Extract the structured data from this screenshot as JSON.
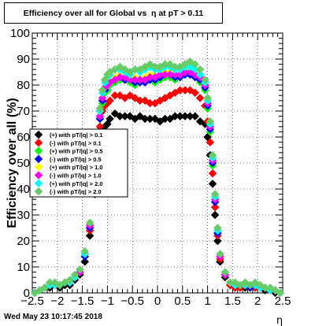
{
  "title": "Efficiency over all for Global vs  η at pT > 0.11",
  "footer_date": "Wed May 23 10:17:45 2018",
  "chart_data": {
    "type": "scatter",
    "xlabel": "η",
    "ylabel": "Efficiency over all (%)",
    "xlim": [
      -2.5,
      2.5
    ],
    "ylim": [
      0,
      100
    ],
    "x_ticks": [
      -2.5,
      -2,
      -1.5,
      -1,
      -0.5,
      0,
      0.5,
      1,
      1.5,
      2,
      2.5
    ],
    "x_tick_labels": [
      "−2.5",
      "−2",
      "−1.5",
      "−1",
      "−0.5",
      "0",
      "0.5",
      "1",
      "1.5",
      "2",
      "2.5"
    ],
    "y_ticks": [
      0,
      10,
      20,
      30,
      40,
      50,
      60,
      70,
      80,
      90,
      100
    ],
    "y_tick_labels": [
      "0",
      "10",
      "20",
      "30",
      "40",
      "50",
      "60",
      "70",
      "80",
      "90",
      "100"
    ],
    "grid": true,
    "legend_position": "middle-left",
    "x": [
      -2.45,
      -2.35,
      -2.25,
      -2.15,
      -2.05,
      -1.95,
      -1.85,
      -1.75,
      -1.65,
      -1.55,
      -1.45,
      -1.35,
      -1.25,
      -1.2,
      -1.15,
      -1.1,
      -1.05,
      -1.0,
      -0.95,
      -0.85,
      -0.75,
      -0.65,
      -0.55,
      -0.45,
      -0.35,
      -0.25,
      -0.15,
      -0.05,
      0.05,
      0.15,
      0.25,
      0.35,
      0.45,
      0.55,
      0.65,
      0.75,
      0.85,
      0.95,
      1.0,
      1.05,
      1.1,
      1.15,
      1.2,
      1.25,
      1.35,
      1.45,
      1.55,
      1.65,
      1.75,
      1.85,
      1.95,
      2.05,
      2.15,
      2.25,
      2.35,
      2.45
    ],
    "series": [
      {
        "name": "(+) with pT/|q| > 0.1",
        "color": "#000000",
        "values": [
          0,
          1,
          2,
          2,
          3,
          2,
          3,
          3,
          5,
          7,
          12,
          22,
          38,
          50,
          58,
          62,
          64,
          65,
          67,
          69,
          68,
          68,
          68,
          67,
          68,
          67,
          67,
          67,
          66,
          67,
          67,
          68,
          68,
          68,
          68,
          68,
          66,
          65,
          60,
          53,
          42,
          30,
          20,
          12,
          6,
          3,
          2,
          2,
          2,
          2,
          2,
          2,
          1,
          1,
          0,
          0
        ]
      },
      {
        "name": "(-) with pT/|q| > 0.1",
        "color": "#ff0000",
        "values": [
          0,
          1,
          2,
          3,
          3,
          3,
          4,
          4,
          6,
          8,
          14,
          24,
          42,
          55,
          64,
          70,
          72,
          73,
          74,
          76,
          76,
          75,
          76,
          75,
          74,
          74,
          73,
          73,
          74,
          75,
          76,
          77,
          78,
          78,
          78,
          77,
          75,
          72,
          66,
          58,
          46,
          33,
          22,
          13,
          7,
          3,
          2,
          2,
          3,
          2,
          2,
          2,
          2,
          1,
          1,
          0
        ]
      },
      {
        "name": "(+) with pT/|q| > 0.5",
        "color": "#00ff00",
        "values": [
          0,
          1,
          2,
          3,
          3,
          3,
          4,
          4,
          6,
          8,
          14,
          25,
          43,
          57,
          67,
          73,
          77,
          78,
          80,
          81,
          82,
          82,
          81,
          80,
          81,
          82,
          82,
          81,
          82,
          83,
          83,
          82,
          83,
          84,
          84,
          83,
          81,
          78,
          71,
          62,
          49,
          35,
          23,
          14,
          7,
          4,
          3,
          3,
          3,
          2,
          3,
          2,
          2,
          1,
          1,
          0
        ]
      },
      {
        "name": "(-) with pT/|q| > 0.5",
        "color": "#0000ff",
        "values": [
          0,
          1,
          2,
          3,
          3,
          3,
          4,
          4,
          6,
          8,
          14,
          25,
          43,
          57,
          67,
          74,
          78,
          80,
          81,
          82,
          83,
          82,
          82,
          81,
          81,
          81,
          82,
          82,
          83,
          84,
          84,
          83,
          83,
          84,
          84,
          83,
          82,
          79,
          72,
          63,
          50,
          35,
          23,
          14,
          7,
          4,
          3,
          3,
          3,
          2,
          3,
          2,
          2,
          1,
          1,
          0
        ]
      },
      {
        "name": "(+) with pT/|q| > 1.0",
        "color": "#ffff00",
        "values": [
          0,
          1,
          2,
          3,
          3,
          3,
          4,
          4,
          6,
          8,
          15,
          26,
          44,
          58,
          68,
          75,
          79,
          80,
          81,
          83,
          84,
          83,
          82,
          83,
          82,
          83,
          84,
          84,
          84,
          85,
          85,
          84,
          84,
          85,
          86,
          85,
          83,
          80,
          73,
          64,
          51,
          36,
          24,
          14,
          7,
          4,
          3,
          3,
          3,
          3,
          3,
          2,
          2,
          1,
          1,
          0
        ]
      },
      {
        "name": "(-) with pT/|q| > 1.0",
        "color": "#ff00ff",
        "values": [
          0,
          1,
          2,
          3,
          3,
          3,
          4,
          4,
          6,
          8,
          15,
          26,
          44,
          58,
          68,
          75,
          79,
          80,
          81,
          82,
          83,
          83,
          82,
          82,
          82,
          82,
          83,
          83,
          84,
          84,
          84,
          84,
          84,
          85,
          85,
          84,
          83,
          80,
          73,
          64,
          51,
          36,
          24,
          14,
          7,
          4,
          3,
          3,
          3,
          3,
          3,
          2,
          2,
          1,
          1,
          0
        ]
      },
      {
        "name": "(+) with pT/|q| > 2.0",
        "color": "#00ffff",
        "values": [
          0,
          1,
          2,
          3,
          3,
          3,
          4,
          4,
          6,
          9,
          15,
          27,
          45,
          59,
          70,
          77,
          81,
          83,
          84,
          86,
          86,
          85,
          84,
          86,
          85,
          86,
          87,
          86,
          86,
          87,
          87,
          86,
          86,
          87,
          87,
          86,
          84,
          81,
          74,
          65,
          52,
          37,
          24,
          15,
          8,
          4,
          3,
          3,
          3,
          3,
          3,
          2,
          2,
          1,
          1,
          0
        ]
      },
      {
        "name": "(-) with pT/|q| > 2.0",
        "color": "#66cc66",
        "values": [
          0,
          1,
          2,
          4,
          4,
          3,
          4,
          5,
          7,
          9,
          16,
          27,
          46,
          60,
          71,
          78,
          82,
          84,
          85,
          86,
          87,
          86,
          85,
          86,
          86,
          87,
          88,
          87,
          87,
          88,
          88,
          87,
          87,
          88,
          89,
          88,
          86,
          82,
          75,
          66,
          53,
          38,
          25,
          15,
          8,
          4,
          4,
          3,
          4,
          3,
          4,
          3,
          2,
          2,
          1,
          0
        ]
      }
    ]
  }
}
